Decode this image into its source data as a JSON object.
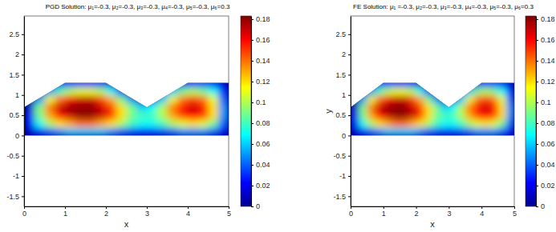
{
  "chart_data": [
    {
      "type": "heatmap",
      "title": "PGD Solution: μ₁=-0.3, μ₂=-0.3, μ₃=-0.3, μ₄=-0.3, μ₅=-0.3, μ₆=0.3",
      "x_label": "x",
      "xlim": [
        0,
        5
      ],
      "xticks": [
        0,
        1,
        2,
        3,
        4,
        5
      ],
      "ylim": [
        -1.75,
        2.95
      ],
      "yticks": [
        -1.5,
        -1,
        -0.5,
        0,
        0.5,
        1,
        1.5,
        2,
        2.5
      ],
      "domain": {
        "x": [
          0,
          1,
          2,
          3,
          4,
          5,
          5,
          0
        ],
        "y": [
          0.7,
          1.3,
          1.3,
          0.7,
          1.3,
          1.3,
          0,
          0
        ]
      },
      "x_edges": [
        0,
        0.25,
        0.5,
        0.75,
        1,
        1.25,
        1.5,
        1.75,
        2,
        2.25,
        2.5,
        2.75,
        3,
        3.25,
        3.5,
        3.75,
        4,
        4.25,
        4.5,
        4.75,
        5
      ],
      "y_edges": [
        0,
        0.2,
        0.4,
        0.6,
        0.8,
        1.0,
        1.2,
        1.4
      ],
      "cells": [
        [
          0.01,
          0.03,
          0.04,
          0.05,
          0.06,
          0.06,
          0.06,
          0.06,
          0.05,
          0.04,
          0.035,
          0.03,
          0.03,
          0.035,
          0.04,
          0.05,
          0.05,
          0.05,
          0.04,
          0.02
        ],
        [
          0.02,
          0.07,
          0.1,
          0.12,
          0.13,
          0.14,
          0.14,
          0.13,
          0.12,
          0.1,
          0.08,
          0.07,
          0.07,
          0.08,
          0.1,
          0.11,
          0.12,
          0.11,
          0.09,
          0.04
        ],
        [
          0.02,
          0.09,
          0.13,
          0.16,
          0.17,
          0.18,
          0.18,
          0.17,
          0.15,
          0.12,
          0.09,
          0.08,
          0.08,
          0.1,
          0.13,
          0.15,
          0.16,
          0.15,
          0.12,
          0.05
        ],
        [
          0.01,
          0.09,
          0.14,
          0.17,
          0.18,
          0.18,
          0.18,
          0.17,
          0.15,
          0.12,
          0.09,
          0.06,
          0.07,
          0.1,
          0.14,
          0.16,
          0.17,
          0.16,
          0.12,
          0.05
        ],
        [
          0,
          0.05,
          0.11,
          0.14,
          0.16,
          0.17,
          0.17,
          0.15,
          0.13,
          0.09,
          0.05,
          0.01,
          0.02,
          0.06,
          0.11,
          0.14,
          0.15,
          0.14,
          0.11,
          0.04
        ],
        [
          0,
          0,
          0.05,
          0.08,
          0.1,
          0.11,
          0.11,
          0.1,
          0.07,
          0.03,
          0,
          0,
          0,
          0.02,
          0.06,
          0.09,
          0.1,
          0.09,
          0.07,
          0.03
        ],
        [
          0,
          0,
          0,
          0.02,
          0.03,
          0.03,
          0.03,
          0.03,
          0.01,
          0,
          0,
          0,
          0,
          0,
          0,
          0.02,
          0.03,
          0.03,
          0.02,
          0.01
        ]
      ],
      "colorbar": {
        "range": [
          0,
          0.183
        ],
        "ticks": [
          0,
          0.02,
          0.04,
          0.06,
          0.08,
          0.1,
          0.12,
          0.14,
          0.16,
          0.18
        ]
      }
    },
    {
      "type": "heatmap",
      "title": "FE Solution: μ₁ =-0.3, μ₂=-0.3, μ₃=-0.3, μ₄=-0.3, μ₅=-0.3, μ₆=0.3",
      "x_label": "x",
      "y_label": "y",
      "xlim": [
        0,
        5
      ],
      "xticks": [
        0,
        1,
        2,
        3,
        4,
        5
      ],
      "ylim": [
        -1.75,
        2.95
      ],
      "yticks": [
        -1.5,
        -1,
        -0.5,
        0,
        0.5,
        1,
        1.5,
        2,
        2.5
      ],
      "domain": {
        "x": [
          0,
          1,
          2,
          3,
          4,
          5,
          5,
          0
        ],
        "y": [
          0.7,
          1.3,
          1.3,
          0.7,
          1.3,
          1.3,
          0,
          0
        ]
      },
      "x_edges": [
        0,
        0.25,
        0.5,
        0.75,
        1,
        1.25,
        1.5,
        1.75,
        2,
        2.25,
        2.5,
        2.75,
        3,
        3.25,
        3.5,
        3.75,
        4,
        4.25,
        4.5,
        4.75,
        5
      ],
      "y_edges": [
        0,
        0.2,
        0.4,
        0.6,
        0.8,
        1.0,
        1.2,
        1.4
      ],
      "cells": [
        [
          0.01,
          0.03,
          0.04,
          0.05,
          0.06,
          0.06,
          0.06,
          0.06,
          0.05,
          0.04,
          0.035,
          0.03,
          0.03,
          0.035,
          0.04,
          0.05,
          0.05,
          0.05,
          0.04,
          0.02
        ],
        [
          0.02,
          0.07,
          0.1,
          0.12,
          0.13,
          0.14,
          0.14,
          0.13,
          0.12,
          0.1,
          0.08,
          0.07,
          0.07,
          0.08,
          0.1,
          0.11,
          0.12,
          0.11,
          0.09,
          0.04
        ],
        [
          0.02,
          0.09,
          0.13,
          0.16,
          0.17,
          0.18,
          0.18,
          0.17,
          0.15,
          0.12,
          0.09,
          0.08,
          0.08,
          0.1,
          0.13,
          0.15,
          0.16,
          0.15,
          0.12,
          0.05
        ],
        [
          0.01,
          0.09,
          0.14,
          0.17,
          0.18,
          0.18,
          0.18,
          0.17,
          0.15,
          0.12,
          0.09,
          0.06,
          0.07,
          0.1,
          0.14,
          0.16,
          0.17,
          0.16,
          0.12,
          0.05
        ],
        [
          0,
          0.05,
          0.11,
          0.14,
          0.16,
          0.17,
          0.17,
          0.15,
          0.13,
          0.09,
          0.05,
          0.01,
          0.02,
          0.06,
          0.11,
          0.14,
          0.15,
          0.14,
          0.11,
          0.04
        ],
        [
          0,
          0,
          0.05,
          0.08,
          0.1,
          0.11,
          0.11,
          0.1,
          0.07,
          0.03,
          0,
          0,
          0,
          0.02,
          0.06,
          0.09,
          0.1,
          0.09,
          0.07,
          0.03
        ],
        [
          0,
          0,
          0,
          0.02,
          0.03,
          0.03,
          0.03,
          0.03,
          0.01,
          0,
          0,
          0,
          0,
          0,
          0,
          0.02,
          0.03,
          0.03,
          0.02,
          0.01
        ]
      ],
      "colorbar": {
        "range": [
          0,
          0.183
        ],
        "ticks": [
          0,
          0.02,
          0.04,
          0.06,
          0.08,
          0.1,
          0.12,
          0.14,
          0.16,
          0.18
        ]
      }
    }
  ]
}
